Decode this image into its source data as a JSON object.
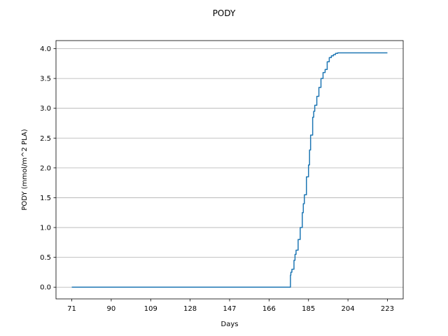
{
  "chart_data": {
    "type": "line",
    "title": "PODY",
    "xlabel": "Days",
    "ylabel": "PODY (mmol/m^2 PLA)",
    "xlim": [
      63.4,
      230.6
    ],
    "ylim": [
      -0.197,
      4.135
    ],
    "xticks": [
      71,
      90,
      109,
      128,
      147,
      166,
      185,
      204,
      223
    ],
    "xtick_labels": [
      "71",
      "90",
      "109",
      "128",
      "147",
      "166",
      "185",
      "204",
      "223"
    ],
    "yticks": [
      0.0,
      0.5,
      1.0,
      1.5,
      2.0,
      2.5,
      3.0,
      3.5,
      4.0
    ],
    "ytick_labels": [
      "0.0",
      "0.5",
      "1.0",
      "1.5",
      "2.0",
      "2.5",
      "3.0",
      "3.5",
      "4.0"
    ],
    "grid": "horizontal",
    "color": "#1f77b4",
    "series": [
      {
        "x": [
          71,
          176,
          176.3,
          176.5,
          177,
          178,
          178.5,
          179,
          180,
          181,
          182,
          182.5,
          183,
          184,
          185,
          185.5,
          186,
          187,
          187.5,
          188,
          189,
          190,
          191,
          192,
          193,
          194,
          195,
          196,
          197,
          198,
          199,
          200,
          201,
          202,
          203,
          223
        ],
        "y": [
          0.0,
          0.0,
          0.2,
          0.25,
          0.3,
          0.45,
          0.55,
          0.62,
          0.8,
          1.0,
          1.25,
          1.4,
          1.55,
          1.85,
          2.05,
          2.3,
          2.55,
          2.85,
          2.95,
          3.05,
          3.2,
          3.35,
          3.5,
          3.6,
          3.65,
          3.78,
          3.85,
          3.88,
          3.9,
          3.92,
          3.93,
          3.93,
          3.93,
          3.93,
          3.93,
          3.93
        ]
      }
    ]
  }
}
